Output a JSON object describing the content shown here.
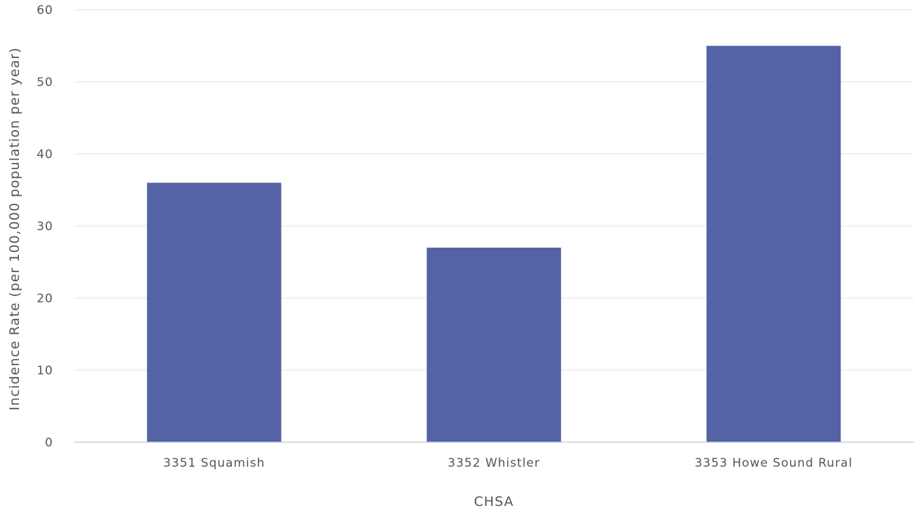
{
  "chart_data": {
    "type": "bar",
    "categories": [
      "3351 Squamish",
      "3352 Whistler",
      "3353 Howe Sound Rural"
    ],
    "series": [
      {
        "values": [
          36,
          27,
          55
        ]
      }
    ],
    "xlabel": "CHSA",
    "ylabel": "Incidence Rate (per 100,000 population per year)",
    "ylim": [
      0,
      60
    ],
    "yticks": [
      0,
      10,
      20,
      30,
      40,
      50,
      60
    ],
    "grid": true,
    "legend": "none",
    "bar_color": "#5463a6"
  }
}
